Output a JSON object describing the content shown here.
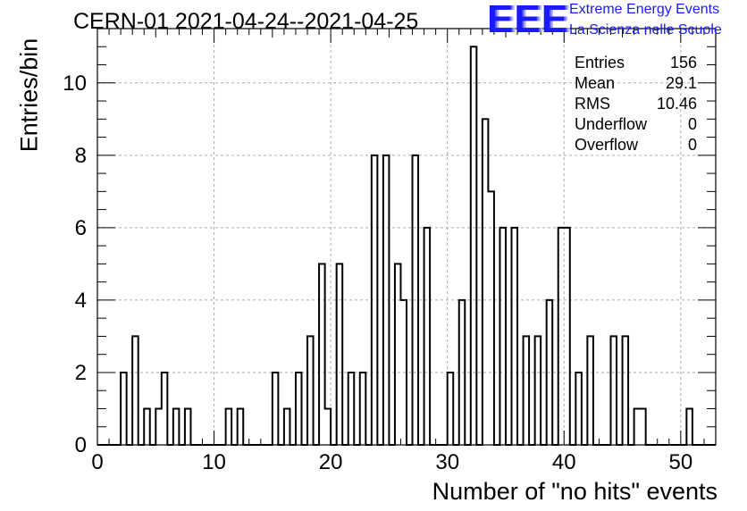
{
  "header": {
    "title": "CERN-01 2021-04-24--2021-04-25",
    "logo_text": "EEE",
    "logo_line1": "Extreme Energy Events",
    "logo_line2": "La Scienza nelle Scuole"
  },
  "stats": [
    {
      "label": "Entries",
      "value": "156"
    },
    {
      "label": "Mean",
      "value": "29.1"
    },
    {
      "label": "RMS",
      "value": "10.46"
    },
    {
      "label": "Underflow",
      "value": "0"
    },
    {
      "label": "Overflow",
      "value": "0"
    }
  ],
  "colors": {
    "logo": "#1a1aff",
    "line": "#000000",
    "grid": "#aaaaaa"
  },
  "chart_data": {
    "type": "bar",
    "histogram": true,
    "xlabel": "Number of \"no hits\" events",
    "ylabel": "Entries/bin",
    "xlim": [
      0,
      53
    ],
    "ylim": [
      0,
      11.5
    ],
    "x_ticks": [
      "0",
      "10",
      "20",
      "30",
      "40",
      "50"
    ],
    "y_ticks": [
      "0",
      "2",
      "4",
      "6",
      "8",
      "10"
    ],
    "grid": true,
    "bin_width": 0.5,
    "bin_start": 0,
    "values": [
      0,
      0,
      0,
      0,
      2,
      0,
      3,
      0,
      1,
      0,
      1,
      2,
      0,
      1,
      0,
      1,
      0,
      0,
      0,
      0,
      0,
      0,
      1,
      0,
      1,
      0,
      0,
      0,
      0,
      0,
      2,
      0,
      1,
      0,
      2,
      0,
      3,
      0,
      5,
      1,
      0,
      5,
      0,
      2,
      0,
      2,
      0,
      8,
      0,
      8,
      0,
      5,
      4,
      0,
      8,
      0,
      6,
      0,
      0,
      0,
      2,
      0,
      4,
      0,
      11,
      0,
      9,
      7,
      0,
      6,
      0,
      6,
      0,
      3,
      0,
      3,
      0,
      4,
      0,
      6,
      6,
      0,
      2,
      0,
      3,
      0,
      0,
      0,
      3,
      0,
      3,
      0,
      1,
      1,
      0,
      0,
      0,
      0,
      0,
      0,
      0,
      1,
      0,
      0,
      0,
      0
    ]
  }
}
